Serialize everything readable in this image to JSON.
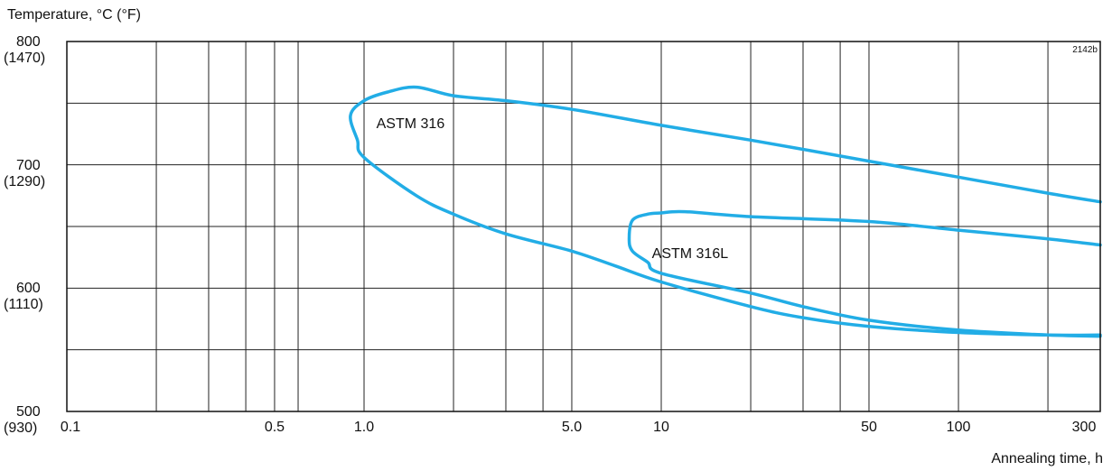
{
  "chart_data": {
    "type": "line",
    "title": "",
    "ylabel": "Temperature, °C (°F)",
    "xlabel": "Annealing time, h",
    "reference_code": "2142b",
    "x_scale": "log",
    "xlim": [
      0.1,
      300
    ],
    "ylim": [
      500,
      800
    ],
    "grid": true,
    "x_ticks": [
      {
        "value": 0.1,
        "label": "0.1"
      },
      {
        "value": 0.5,
        "label": "0.5"
      },
      {
        "value": 1.0,
        "label": "1.0"
      },
      {
        "value": 5.0,
        "label": "5.0"
      },
      {
        "value": 10,
        "label": "10"
      },
      {
        "value": 50,
        "label": "50"
      },
      {
        "value": 100,
        "label": "100"
      },
      {
        "value": 300,
        "label": "300"
      }
    ],
    "x_gridlines": [
      0.2,
      0.3,
      0.4,
      0.5,
      0.6,
      1,
      2,
      3,
      4,
      5,
      10,
      20,
      30,
      40,
      50,
      100,
      200,
      300
    ],
    "y_ticks": [
      {
        "value": 800,
        "label_c": "800",
        "label_f": "(1470)"
      },
      {
        "value": 700,
        "label_c": "700",
        "label_f": "(1290)"
      },
      {
        "value": 600,
        "label_c": "600",
        "label_f": "(1110)"
      },
      {
        "value": 500,
        "label_c": "500",
        "label_f": "(930)"
      }
    ],
    "y_gridlines": [
      550,
      600,
      650,
      700,
      750
    ],
    "series": [
      {
        "name": "ASTM 316",
        "color": "#22ade6",
        "points": [
          [
            300,
            670
          ],
          [
            200,
            677
          ],
          [
            100,
            690
          ],
          [
            50,
            703
          ],
          [
            20,
            720
          ],
          [
            10,
            732
          ],
          [
            5,
            745
          ],
          [
            3,
            752
          ],
          [
            2,
            756
          ],
          [
            1.5,
            763
          ],
          [
            1.2,
            759
          ],
          [
            1.0,
            752
          ],
          [
            0.9,
            740
          ],
          [
            0.95,
            720
          ],
          [
            1.0,
            706
          ],
          [
            1.5,
            675
          ],
          [
            2,
            660
          ],
          [
            3,
            644
          ],
          [
            5,
            630
          ],
          [
            7,
            618
          ],
          [
            10,
            605
          ],
          [
            20,
            585
          ],
          [
            30,
            576
          ],
          [
            50,
            569
          ],
          [
            100,
            564
          ],
          [
            200,
            562
          ],
          [
            300,
            562
          ]
        ]
      },
      {
        "name": "ASTM 316L",
        "color": "#22ade6",
        "points": [
          [
            300,
            635
          ],
          [
            200,
            640
          ],
          [
            100,
            647
          ],
          [
            50,
            654
          ],
          [
            20,
            658
          ],
          [
            12,
            662
          ],
          [
            10,
            661
          ],
          [
            9,
            660
          ],
          [
            8,
            655
          ],
          [
            7.8,
            640
          ],
          [
            8,
            630
          ],
          [
            9,
            621
          ],
          [
            10,
            612
          ],
          [
            20,
            596
          ],
          [
            30,
            585
          ],
          [
            50,
            574
          ],
          [
            100,
            566
          ],
          [
            200,
            562
          ],
          [
            300,
            561
          ]
        ]
      }
    ],
    "annotations": [
      {
        "text": "ASTM 316",
        "x": 1.1,
        "y": 733
      },
      {
        "text": "ASTM  316L",
        "x": 9.3,
        "y": 627
      }
    ]
  }
}
